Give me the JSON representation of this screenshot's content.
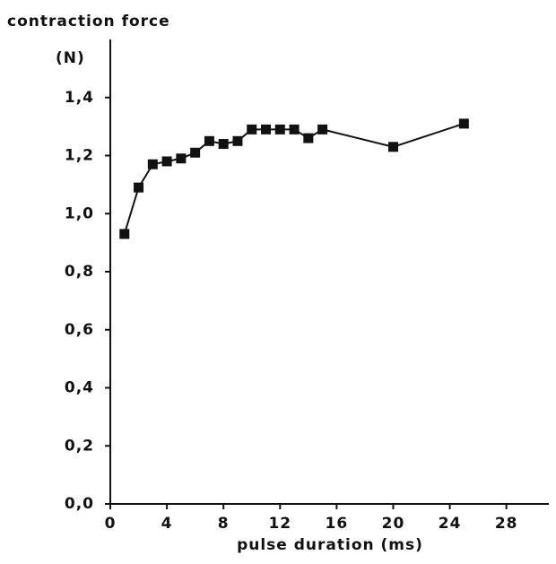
{
  "chart_data": {
    "type": "line",
    "title": "contraction force",
    "ylabel": "(N)",
    "xlabel": "pulse duration (ms)",
    "x": [
      1,
      2,
      3,
      4,
      5,
      6,
      7,
      8,
      9,
      10,
      11,
      12,
      13,
      14,
      15,
      20,
      25
    ],
    "series": [
      {
        "name": null,
        "color": "#111111",
        "values": [
          0.93,
          1.09,
          1.17,
          1.18,
          1.19,
          1.21,
          1.25,
          1.24,
          1.25,
          1.29,
          1.29,
          1.29,
          1.29,
          1.26,
          1.29,
          1.23,
          1.31
        ]
      }
    ],
    "xlim": [
      0,
      31
    ],
    "xticks": [
      0,
      4,
      8,
      12,
      16,
      20,
      24,
      28
    ],
    "ylim": [
      0,
      1.6
    ],
    "yticks": [
      {
        "value": 0,
        "label": "0,0"
      },
      {
        "value": 0.2,
        "label": "0,2"
      },
      {
        "value": 0.4,
        "label": "0,4"
      },
      {
        "value": 0.6,
        "label": "0,6"
      },
      {
        "value": 0.8,
        "label": "0,8"
      },
      {
        "value": 1.0,
        "label": "1,0"
      },
      {
        "value": 1.2,
        "label": "1,2"
      },
      {
        "value": 1.4,
        "label": "1,4"
      }
    ],
    "grid": false
  }
}
